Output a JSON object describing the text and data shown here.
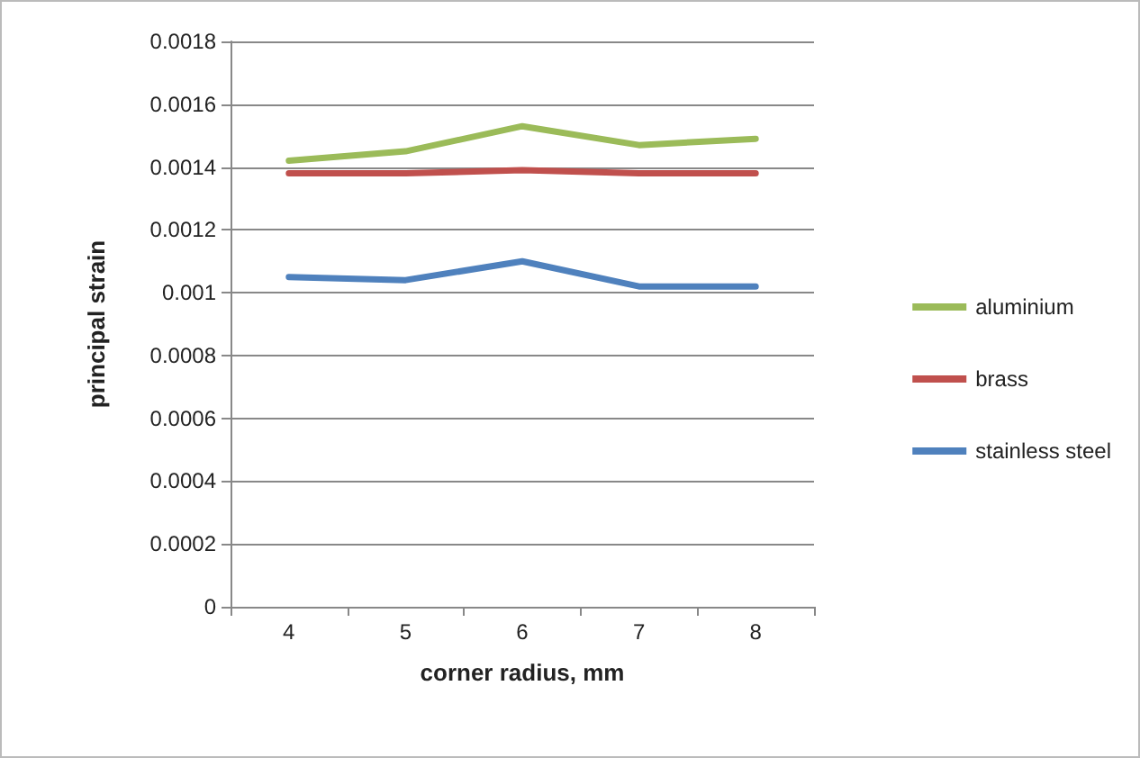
{
  "chart_data": {
    "type": "line",
    "xlabel": "corner radius, mm",
    "ylabel": "principal strain",
    "categories": [
      "4",
      "5",
      "6",
      "7",
      "8"
    ],
    "series": [
      {
        "name": "aluminium",
        "color": "#9bbb59",
        "values": [
          0.00142,
          0.00145,
          0.00153,
          0.00147,
          0.00149
        ]
      },
      {
        "name": "brass",
        "color": "#c0504d",
        "values": [
          0.00138,
          0.00138,
          0.00139,
          0.00138,
          0.00138
        ]
      },
      {
        "name": "stainless steel",
        "color": "#4f81bd",
        "values": [
          0.00105,
          0.00104,
          0.0011,
          0.00102,
          0.00102
        ]
      }
    ],
    "ylim": [
      0,
      0.0018
    ],
    "yticks": [
      0,
      0.0002,
      0.0004,
      0.0006,
      0.0008,
      0.001,
      0.0012,
      0.0014,
      0.0016,
      0.0018
    ],
    "grid": "y",
    "legend": "right",
    "marker": "none",
    "line_style": "solid"
  }
}
